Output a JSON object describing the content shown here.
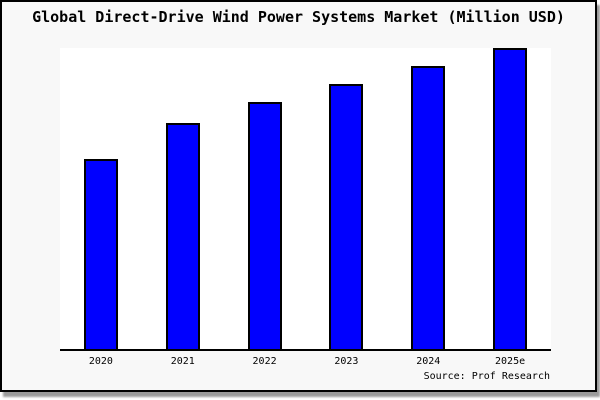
{
  "window": {
    "bg_color": "#f8f8f8",
    "border_color": "#000000",
    "shadow_color": "#9a9a9a"
  },
  "chart_data": {
    "type": "bar",
    "title": "Global Direct-Drive Wind Power Systems Market (Million USD)",
    "categories": [
      "2020",
      "2021",
      "2022",
      "2023",
      "2024",
      "2025e"
    ],
    "values": [
      63,
      75,
      82,
      88,
      94,
      100
    ],
    "value_scale": "relative height, % of tallest bar (no y-axis, gridlines or value labels shown)",
    "xlabel": "",
    "ylabel": "",
    "grid": false,
    "legend": false,
    "y_axis_visible": false,
    "bar_color": "#0000ff",
    "bar_border_color": "#000000",
    "plot_bg_color": "#ffffff",
    "source": "Source: Prof Research"
  }
}
